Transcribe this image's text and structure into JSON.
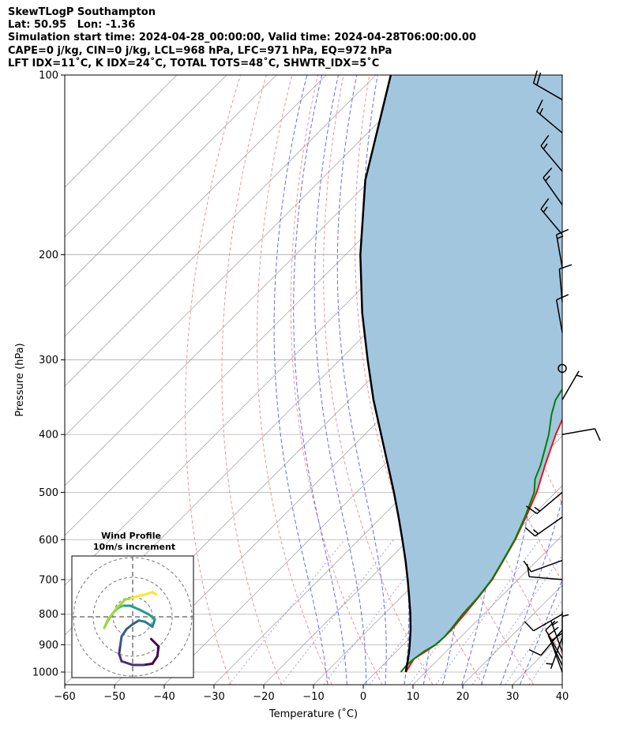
{
  "header": {
    "line1": "SkewTLogP Southampton",
    "line2": "Lat: 50.95   Lon: -1.36",
    "line3": "Simulation start time: 2024-04-28_00:00:00, Valid time: 2024-04-28T06:00:00.00",
    "line4": "CAPE=0 j/kg, CIN=0 j/kg, LCL=968 hPa, LFC=971 hPa, EQ=972 hPa",
    "line5": "LFT IDX=11˚C, K IDX=24˚C, TOTAL TOTS=48˚C, SHWTR_IDX=5˚C"
  },
  "chart_data": {
    "type": "line",
    "subtype": "skew-t log-p",
    "xlabel": "Temperature (˚C)",
    "ylabel": "Pressure (hPa)",
    "xlim": [
      -60,
      40
    ],
    "ylim": [
      1050,
      100
    ],
    "y_scale": "log",
    "grid": true,
    "x_ticks": [
      -60,
      -50,
      -40,
      -30,
      -20,
      -10,
      0,
      10,
      20,
      30,
      40
    ],
    "x_tick_labels": [
      "−60",
      "−50",
      "−40",
      "−30",
      "−20",
      "−10",
      "0",
      "10",
      "20",
      "30",
      "40"
    ],
    "y_ticks": [
      100,
      200,
      300,
      400,
      500,
      600,
      700,
      800,
      900,
      1000
    ],
    "y_tick_labels": [
      "100",
      "200",
      "300",
      "400",
      "500",
      "600",
      "700",
      "800",
      "900",
      "1000"
    ],
    "colors": {
      "temperature": "#ee1111",
      "dewpoint": "#008000",
      "parcel": "#000000",
      "fill": "#a3c6df",
      "dry_adiabat": "#f08080",
      "moist_adiabat": "#4455ee",
      "mixing_ratio": "#7777ee",
      "isotherm": "#aaaaaa"
    },
    "series": [
      {
        "key": "temperature",
        "p": [
          1000,
          975,
          950,
          925,
          900,
          875,
          850,
          800,
          750,
          700,
          650,
          600,
          550,
          500,
          450,
          400,
          350,
          330,
          310,
          300,
          290,
          270,
          250,
          230,
          200,
          180,
          160,
          140,
          120,
          100
        ],
        "t": [
          6,
          5.5,
          5,
          5.8,
          6.5,
          6.7,
          6.7,
          6.2,
          5.6,
          4.8,
          3.2,
          1.4,
          -1,
          -3.8,
          -7.6,
          -11.6,
          -15.5,
          -15.8,
          -15.8,
          -15,
          -12,
          -9,
          -6.5,
          -4,
          -1,
          2,
          4,
          7,
          11,
          18
        ]
      },
      {
        "key": "dewpoint",
        "p": [
          1000,
          975,
          950,
          925,
          900,
          875,
          850,
          800,
          750,
          700,
          650,
          600,
          550,
          500,
          475,
          450,
          400,
          370,
          350,
          320,
          300,
          285,
          270,
          250,
          230,
          220,
          200,
          180,
          170,
          150,
          130,
          110,
          100
        ],
        "t": [
          5,
          4.8,
          5,
          5.5,
          6.5,
          6.7,
          6.5,
          5.8,
          5.5,
          4.7,
          3.1,
          1.3,
          -1.2,
          -4.3,
          -6.8,
          -8.5,
          -13,
          -16.5,
          -18.6,
          -20.3,
          -21.6,
          -24,
          -26.8,
          -26.9,
          -27,
          -27.4,
          -26.4,
          -26.7,
          -26.8,
          -23,
          -18,
          -12,
          -10
        ]
      },
      {
        "key": "parcel",
        "p": [
          1000,
          975,
          950,
          925,
          900,
          850,
          800,
          750,
          700,
          650,
          600,
          550,
          500,
          450,
          400,
          350,
          300,
          250,
          200,
          150,
          100
        ],
        "t": [
          6,
          4.9,
          3.8,
          2.6,
          1.3,
          -1.5,
          -4.7,
          -8.3,
          -12.2,
          -16.5,
          -21.3,
          -26.6,
          -32.5,
          -39.2,
          -46.7,
          -55.2,
          -64.4,
          -75,
          -87,
          -101,
          -117
        ]
      }
    ],
    "wind_barbs": [
      {
        "p": 1000,
        "spd": 10,
        "dir": 340
      },
      {
        "p": 975,
        "spd": 10,
        "dir": 335
      },
      {
        "p": 950,
        "spd": 10,
        "dir": 330
      },
      {
        "p": 925,
        "spd": 5,
        "dir": 340
      },
      {
        "p": 900,
        "spd": 5,
        "dir": 0
      },
      {
        "p": 875,
        "spd": 5,
        "dir": 200
      },
      {
        "p": 850,
        "spd": 10,
        "dir": 220
      },
      {
        "p": 800,
        "spd": 10,
        "dir": 240
      },
      {
        "p": 700,
        "spd": 10,
        "dir": 275
      },
      {
        "p": 650,
        "spd": 10,
        "dir": 250
      },
      {
        "p": 550,
        "spd": 15,
        "dir": 235
      },
      {
        "p": 500,
        "spd": 15,
        "dir": 230
      },
      {
        "p": 400,
        "spd": 10,
        "dir": 80
      },
      {
        "p": 350,
        "spd": 5,
        "dir": 30
      },
      {
        "p": 310,
        "spd": 0,
        "dir": 0
      },
      {
        "p": 270,
        "spd": 10,
        "dir": 350
      },
      {
        "p": 240,
        "spd": 10,
        "dir": 355
      },
      {
        "p": 210,
        "spd": 15,
        "dir": 350
      },
      {
        "p": 185,
        "spd": 15,
        "dir": 320
      },
      {
        "p": 165,
        "spd": 15,
        "dir": 325
      },
      {
        "p": 145,
        "spd": 15,
        "dir": 320
      },
      {
        "p": 125,
        "spd": 15,
        "dir": 310
      },
      {
        "p": 110,
        "spd": 20,
        "dir": 300
      }
    ],
    "hodograph": {
      "title": "Wind Profile",
      "subtitle": "10m/s increment",
      "rings": [
        1,
        2,
        3
      ],
      "u": [
        1.5,
        2.1,
        2.0,
        1.6,
        0.9,
        0.0,
        -0.9,
        -1.1,
        -1.0,
        -0.9,
        -0.5,
        0.0,
        0.5,
        1.0,
        1.6,
        1.8,
        1.3,
        0.5,
        -0.2,
        -0.8,
        -1.2,
        -1.6,
        -2.0,
        -2.3,
        -2.0,
        -1.2,
        -0.6,
        -0.1,
        0.5,
        1.0,
        1.6,
        1.9
      ],
      "v": [
        -1.8,
        -2.4,
        -3.2,
        -3.8,
        -3.9,
        -3.9,
        -3.6,
        -3.0,
        -2.3,
        -1.6,
        -1.0,
        -0.6,
        -0.3,
        -0.4,
        -0.8,
        -0.2,
        0.2,
        0.6,
        0.9,
        0.9,
        0.7,
        0.3,
        -0.3,
        -0.9,
        -0.2,
        0.8,
        1.4,
        1.5,
        1.7,
        1.8,
        2.0,
        1.8
      ]
    }
  }
}
